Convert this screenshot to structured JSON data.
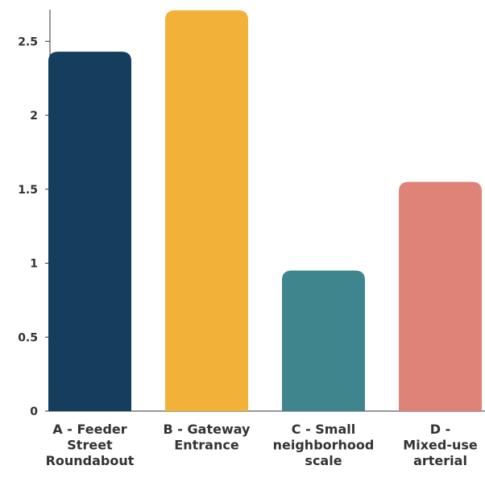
{
  "chart_data": {
    "type": "bar",
    "categories": [
      [
        "A - Feeder",
        "Street",
        "Roundabout"
      ],
      [
        "B - Gateway",
        "Entrance"
      ],
      [
        "C - Small",
        "neighborhood",
        "scale"
      ],
      [
        "D -",
        "Mixed-use",
        "arterial"
      ]
    ],
    "values": [
      2.43,
      2.71,
      0.95,
      1.55
    ],
    "colors": [
      "#143d5e",
      "#f2b23a",
      "#3e858e",
      "#df8278"
    ],
    "ylim": [
      0,
      2.71
    ],
    "yticks": [
      0,
      0.5,
      1,
      1.5,
      2,
      2.5
    ],
    "ytick_labels": [
      "0",
      "0.5",
      "1",
      "1.5",
      "2",
      "2.5"
    ],
    "grid": false,
    "title": "",
    "xlabel": "",
    "ylabel": ""
  }
}
